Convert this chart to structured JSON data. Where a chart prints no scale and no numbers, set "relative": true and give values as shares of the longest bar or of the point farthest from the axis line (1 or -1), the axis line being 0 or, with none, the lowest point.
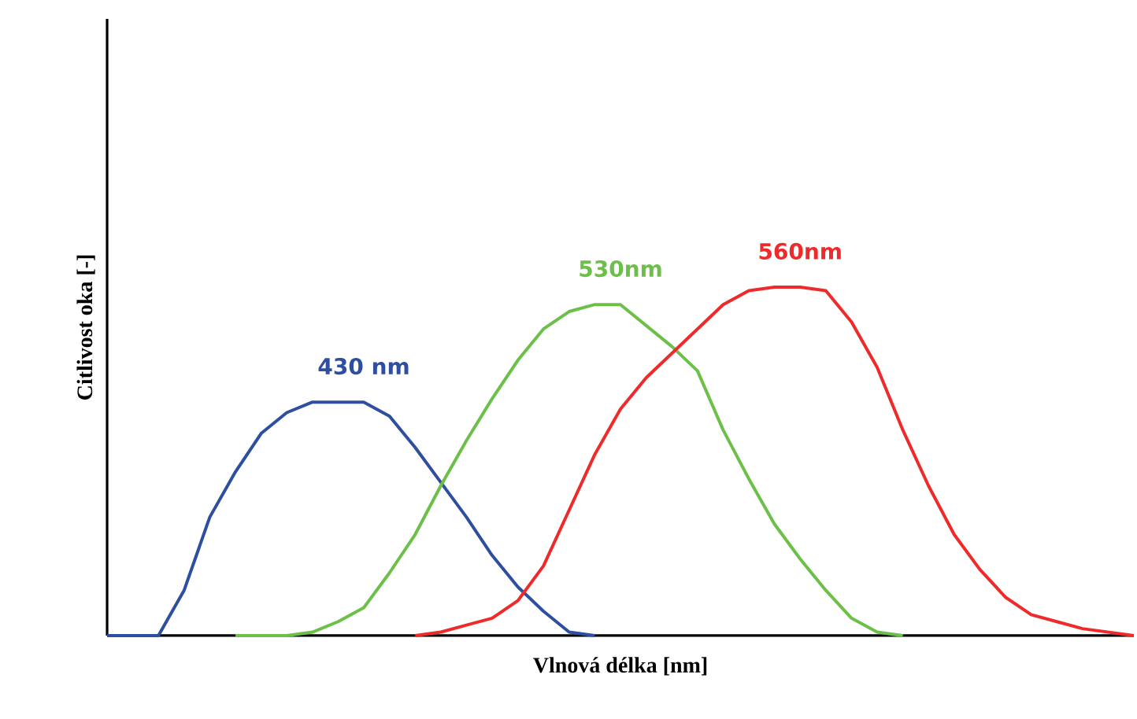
{
  "chart_data": {
    "type": "line",
    "relative": true,
    "xlabel": "Vlnová délka [nm]",
    "ylabel": "Citlivost oka [-]",
    "marker": "none",
    "line_style": "solid",
    "tick_labels": false,
    "categories": [
      null,
      null,
      null,
      null,
      null,
      null,
      null,
      null,
      null,
      null,
      null,
      null,
      null,
      null,
      null,
      null,
      null,
      null,
      null,
      null,
      null,
      null,
      null,
      null,
      null,
      null,
      null,
      null,
      null,
      null,
      null,
      null,
      null,
      null,
      null,
      null,
      null,
      null,
      null,
      null,
      null
    ],
    "series": [
      {
        "name": "430 nm",
        "color": "#2e4fa0",
        "values": [
          0,
          0,
          0,
          0.13,
          0.34,
          0.47,
          0.58,
          0.64,
          0.67,
          0.67,
          0.67,
          0.63,
          0.54,
          0.44,
          0.34,
          0.23,
          0.14,
          0.07,
          0.01,
          0,
          null,
          null,
          null,
          null,
          null,
          null,
          null,
          null,
          null,
          null,
          null,
          null,
          null,
          null,
          null,
          null,
          null,
          null,
          null,
          null,
          null
        ]
      },
      {
        "name": "530nm",
        "color": "#6cc04a",
        "values": [
          null,
          null,
          null,
          null,
          null,
          0,
          0,
          0,
          0.01,
          0.04,
          0.08,
          0.18,
          0.29,
          0.43,
          0.56,
          0.68,
          0.79,
          0.88,
          0.93,
          0.95,
          0.95,
          0.89,
          0.83,
          0.76,
          0.59,
          0.45,
          0.32,
          0.22,
          0.13,
          0.05,
          0.01,
          0,
          null,
          null,
          null,
          null,
          null,
          null,
          null,
          null,
          null
        ]
      },
      {
        "name": "560nm",
        "color": "#ee2a2a",
        "values": [
          null,
          null,
          null,
          null,
          null,
          null,
          null,
          null,
          null,
          null,
          null,
          null,
          0,
          0.01,
          0.03,
          0.05,
          0.1,
          0.2,
          0.36,
          0.52,
          0.65,
          0.74,
          0.81,
          0.88,
          0.95,
          0.99,
          1,
          1,
          0.99,
          0.9,
          0.77,
          0.59,
          0.43,
          0.29,
          0.19,
          0.11,
          0.06,
          0.04,
          0.02,
          0.01,
          0
        ]
      }
    ]
  }
}
